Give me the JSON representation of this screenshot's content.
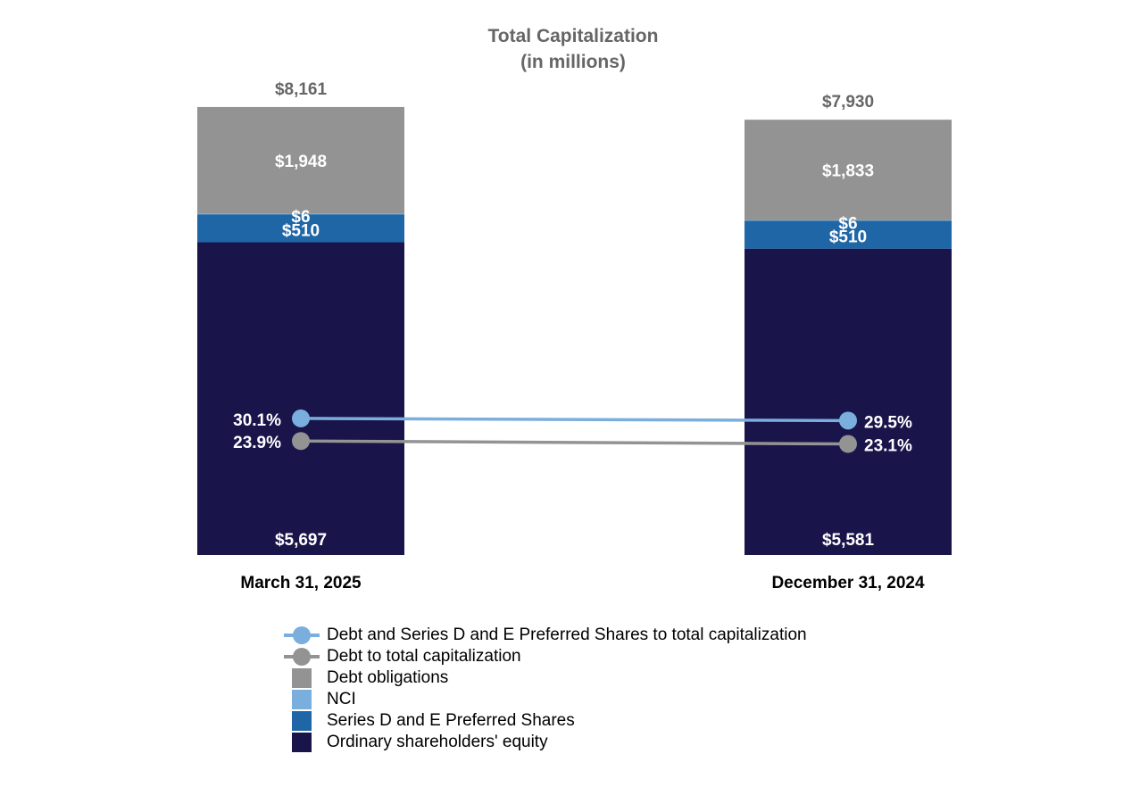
{
  "chart_data": {
    "type": "bar",
    "stacked": true,
    "title": "Total Capitalization",
    "subtitle": "(in millions)",
    "categories": [
      "March 31, 2025",
      "December 31, 2024"
    ],
    "totals": [
      "$8,161",
      "$7,930"
    ],
    "total_values": [
      8161,
      7930
    ],
    "series": [
      {
        "name": "Ordinary shareholders' equity",
        "values": [
          5697,
          5581
        ],
        "labels": [
          "$5,697",
          "$5,581"
        ],
        "color": "#19144A"
      },
      {
        "name": "Series D and E Preferred Shares",
        "values": [
          510,
          510
        ],
        "labels": [
          "$510",
          "$510"
        ],
        "color": "#1F66A6"
      },
      {
        "name": "NCI",
        "values": [
          6,
          6
        ],
        "labels": [
          "$6",
          "$6"
        ],
        "color": "#7AAEDD"
      },
      {
        "name": "Debt obligations",
        "values": [
          1948,
          1833
        ],
        "labels": [
          "$1,948",
          "$1,833"
        ],
        "color": "#939393"
      }
    ],
    "lines": [
      {
        "name": "Debt and Series D and E Preferred Shares to total capitalization",
        "values": [
          30.1,
          29.5
        ],
        "labels": [
          "30.1%",
          "29.5%"
        ],
        "color": "#7AAEDD"
      },
      {
        "name": "Debt to total capitalization",
        "values": [
          23.9,
          23.1
        ],
        "labels": [
          "23.9%",
          "23.1%"
        ],
        "color": "#939393"
      }
    ],
    "legend_position": "bottom"
  },
  "legend": [
    {
      "label": "Debt and Series D and E Preferred Shares to total capitalization",
      "kind": "line",
      "color": "#7AAEDD"
    },
    {
      "label": "Debt to total capitalization",
      "kind": "line",
      "color": "#939393"
    },
    {
      "label": "Debt obligations",
      "kind": "box",
      "color": "#939393"
    },
    {
      "label": "NCI",
      "kind": "box",
      "color": "#7AAEDD"
    },
    {
      "label": "Series D and E Preferred Shares",
      "kind": "box",
      "color": "#1F66A6"
    },
    {
      "label": "Ordinary shareholders' equity",
      "kind": "box",
      "color": "#19144A"
    }
  ]
}
